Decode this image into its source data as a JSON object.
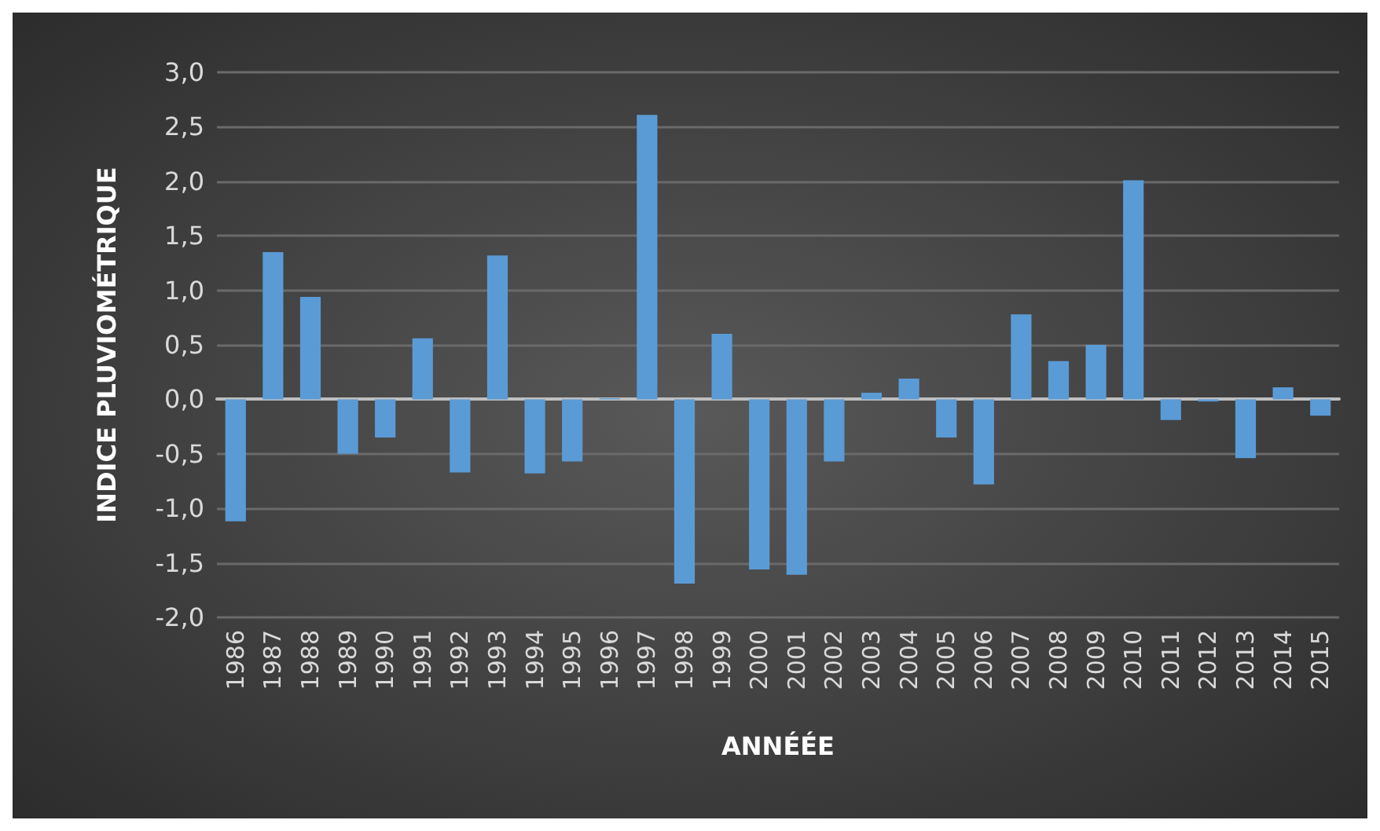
{
  "chart_data": {
    "type": "bar",
    "xlabel": "ANNÉÉE",
    "ylabel": "INDICE PLUVIOMÉTRIQUE",
    "categories": [
      "1986",
      "1987",
      "1988",
      "1989",
      "1990",
      "1991",
      "1992",
      "1993",
      "1994",
      "1995",
      "1996",
      "1997",
      "1998",
      "1999",
      "2000",
      "2001",
      "2002",
      "2003",
      "2004",
      "2005",
      "2006",
      "2007",
      "2008",
      "2009",
      "2010",
      "2011",
      "2012",
      "2013",
      "2014",
      "2015"
    ],
    "series": [
      {
        "color": "#5b9bd5",
        "values": [
          -1.12,
          1.35,
          0.94,
          -0.5,
          -0.35,
          0.56,
          -0.67,
          1.32,
          -0.68,
          -0.57,
          0.01,
          2.61,
          -1.69,
          0.6,
          -1.56,
          -1.61,
          -0.57,
          0.06,
          0.19,
          -0.35,
          -0.78,
          0.78,
          0.35,
          0.5,
          2.01,
          -0.19,
          -0.02,
          -0.54,
          0.11,
          -0.15
        ]
      }
    ],
    "ylim": [
      -2,
      3
    ],
    "yticks": [
      {
        "value": -2,
        "label": "-2,0"
      },
      {
        "value": -1.5,
        "label": "-1,5"
      },
      {
        "value": -1,
        "label": "-1,0"
      },
      {
        "value": -0.5,
        "label": "-0,5"
      },
      {
        "value": 0,
        "label": "0,0"
      },
      {
        "value": 0.5,
        "label": "0,5"
      },
      {
        "value": 1,
        "label": "1,0"
      },
      {
        "value": 1.5,
        "label": "1,5"
      },
      {
        "value": 2,
        "label": "2,0"
      },
      {
        "value": 2.5,
        "label": "2,5"
      },
      {
        "value": 3,
        "label": "3,0"
      }
    ],
    "grid": true
  }
}
